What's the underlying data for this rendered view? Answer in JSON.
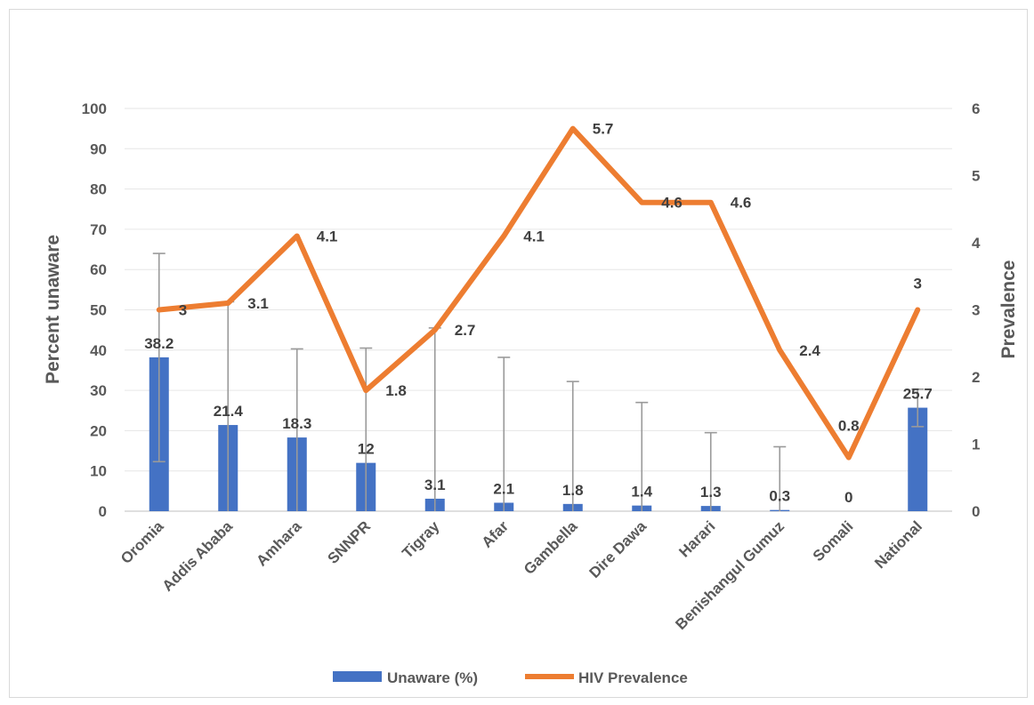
{
  "chart_data": {
    "type": "bar",
    "categories": [
      "Oromia",
      "Addis Ababa",
      "Amhara",
      "SNNPR",
      "Tigray",
      "Afar",
      "Gambella",
      "Dire Dawa",
      "Harari",
      "Benishangul Gumuz",
      "Somali",
      "National"
    ],
    "series": [
      {
        "name": "Unaware (%)",
        "type": "bar",
        "axis": "left",
        "color": "#4472c4",
        "values": [
          38.2,
          21.4,
          18.3,
          12,
          3.1,
          2.1,
          1.8,
          1.4,
          1.3,
          0.3,
          0,
          25.7
        ],
        "labels": [
          "38.2",
          "21.4",
          "18.3",
          "12",
          "3.1",
          "2.1",
          "1.8",
          "1.4",
          "1.3",
          "0.3",
          "0",
          "25.7"
        ],
        "error_low": [
          12.3,
          0,
          0,
          0,
          0,
          0,
          0,
          0,
          0,
          0,
          0,
          21
        ],
        "error_high": [
          64,
          52,
          40.3,
          40.5,
          45.5,
          38.2,
          32.2,
          27,
          19.5,
          16,
          0,
          30.3
        ]
      },
      {
        "name": "HIV Prevalence",
        "type": "line",
        "axis": "right",
        "color": "#ed7d31",
        "values": [
          3,
          3.1,
          4.1,
          1.8,
          2.7,
          4.1,
          5.7,
          4.6,
          4.6,
          2.4,
          0.8,
          3
        ],
        "labels": [
          "3",
          "3.1",
          "4.1",
          "1.8",
          "2.7",
          "4.1",
          "5.7",
          "4.6",
          "4.6",
          "2.4",
          "0.8",
          "3"
        ]
      }
    ],
    "ylabel": "Percent unaware",
    "y2label": "Prevalence",
    "ylim": [
      0,
      100
    ],
    "yticks": [
      "0",
      "10",
      "20",
      "30",
      "40",
      "50",
      "60",
      "70",
      "80",
      "90",
      "100"
    ],
    "y2lim": [
      0,
      6
    ],
    "y2ticks": [
      "0",
      "1",
      "2",
      "3",
      "4",
      "5",
      "6"
    ],
    "grid": true,
    "legend_position": "bottom"
  }
}
